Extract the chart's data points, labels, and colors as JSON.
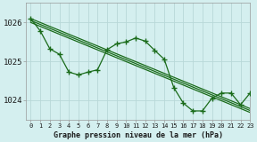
{
  "background_color": "#d4efef",
  "grid_color": "#b8d8d8",
  "line_color": "#1a6b1a",
  "title": "Graphe pression niveau de la mer (hPa)",
  "xlim": [
    -0.5,
    23
  ],
  "ylim": [
    1023.5,
    1026.5
  ],
  "yticks": [
    1024,
    1025,
    1026
  ],
  "xticks": [
    0,
    1,
    2,
    3,
    4,
    5,
    6,
    7,
    8,
    9,
    10,
    11,
    12,
    13,
    14,
    15,
    16,
    17,
    18,
    19,
    20,
    21,
    22,
    23
  ],
  "straight_lines": [
    {
      "x0": 0,
      "y0": 1026.1,
      "x1": 23,
      "y1": 1023.78
    },
    {
      "x0": 0,
      "y0": 1026.05,
      "x1": 23,
      "y1": 1023.73
    },
    {
      "x0": 0,
      "y0": 1026.0,
      "x1": 23,
      "y1": 1023.68
    }
  ],
  "curve_x": [
    0,
    1,
    2,
    3,
    4,
    5,
    6,
    7,
    8,
    9,
    10,
    11,
    12,
    13,
    14,
    15,
    16,
    17,
    18,
    19,
    20,
    21,
    22,
    23
  ],
  "curve_y": [
    1026.1,
    1025.78,
    1025.32,
    1025.18,
    1024.72,
    1024.65,
    1024.72,
    1024.78,
    1025.3,
    1025.45,
    1025.5,
    1025.6,
    1025.52,
    1025.28,
    1025.05,
    1024.32,
    1023.92,
    1023.72,
    1023.72,
    1024.05,
    1024.18,
    1024.18,
    1023.88,
    1024.18
  ]
}
